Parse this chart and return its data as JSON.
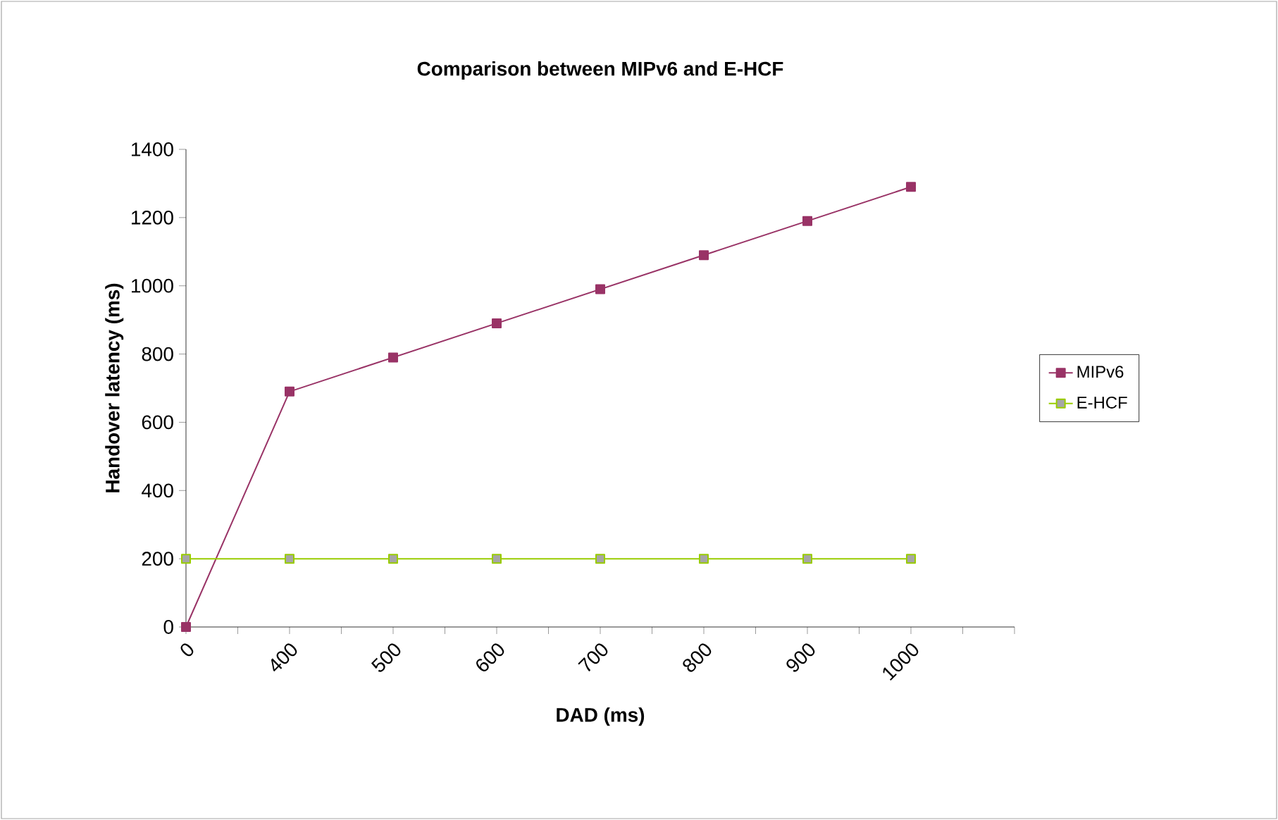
{
  "chart_data": {
    "type": "line",
    "title": "Comparison between MIPv6 and E-HCF",
    "xlabel": "DAD (ms)",
    "ylabel": "Handover latency (ms)",
    "categories": [
      "0",
      "400",
      "500",
      "600",
      "700",
      "800",
      "900",
      "1000",
      null
    ],
    "series": [
      {
        "name": "MIPv6",
        "color": "#993366",
        "values": [
          0,
          690,
          790,
          890,
          990,
          1090,
          1190,
          1290,
          null
        ]
      },
      {
        "name": "E-HCF",
        "color": "#99cc00",
        "values": [
          200,
          200,
          200,
          200,
          200,
          200,
          200,
          200,
          null
        ]
      }
    ],
    "ylim": [
      0,
      1400
    ],
    "yticks": [
      0,
      200,
      400,
      600,
      800,
      1000,
      1200,
      1400
    ],
    "marker": "square",
    "line_style": "solid",
    "legend": "right",
    "grid": false
  }
}
